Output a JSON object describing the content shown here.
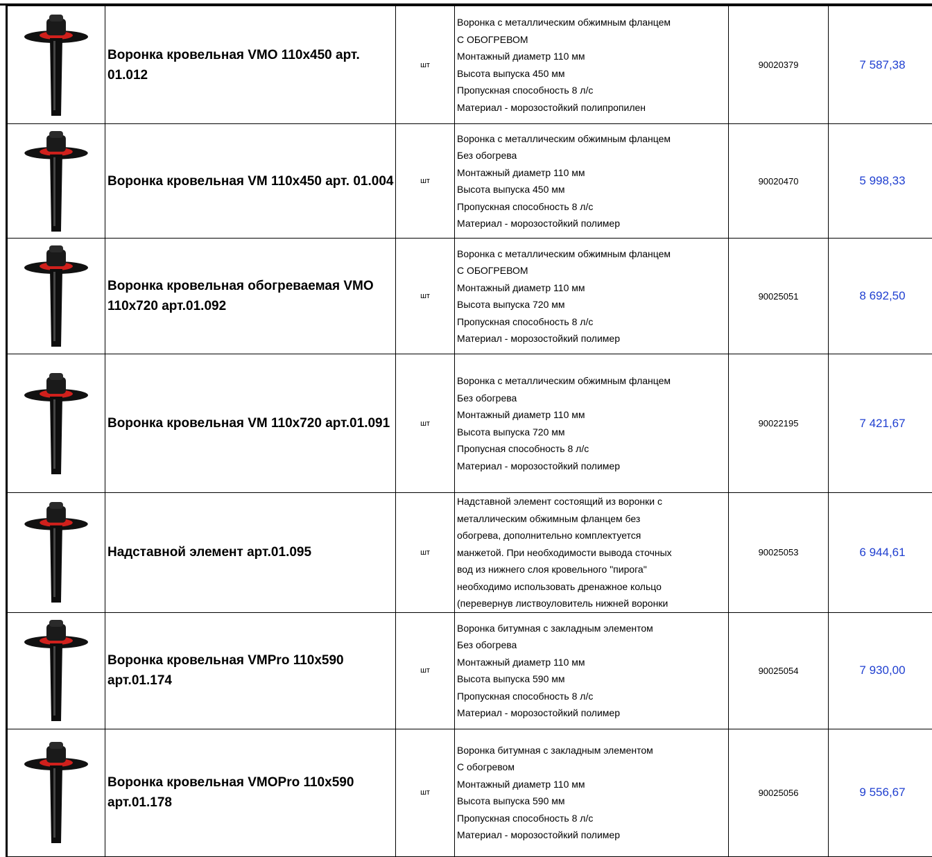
{
  "table": {
    "rows": [
      {
        "name": "Воронка кровельная VMO 110x450 арт. 01.012",
        "unit": "шт",
        "description": [
          "Воронка с металлическим обжимным фланцем",
          "С ОБОГРЕВОМ",
          "Монтажный диаметр 110 мм",
          "Высота выпуска 450 мм",
          "Пропускная способность 8 л/с",
          "Материал - морозостойкий полипропилен"
        ],
        "code": "90020379",
        "price": "7 587,38"
      },
      {
        "name": "Воронка кровельная VM 110x450 арт. 01.004",
        "unit": "шт",
        "description": [
          "Воронка с металлическим обжимным фланцем",
          "Без обогрева",
          "Монтажный диаметр 110 мм",
          "Высота выпуска 450 мм",
          "Пропускная способность 8 л/с",
          "Материал - морозостойкий полимер"
        ],
        "code": "90020470",
        "price": "5 998,33"
      },
      {
        "name": "Воронка кровельная обогреваемая VMO 110x720 арт.01.092",
        "unit": "шт",
        "description": [
          "Воронка с металлическим обжимным фланцем",
          "С ОБОГРЕВОМ",
          "Монтажный диаметр 110 мм",
          "Высота выпуска 720 мм",
          "Пропускная способность 8 л/с",
          "Материал - морозостойкий полимер"
        ],
        "code": "90025051",
        "price": "8 692,50"
      },
      {
        "name": "Воронка кровельная VM 110x720 арт.01.091",
        "unit": "шт",
        "description": [
          "Воронка с металлическим обжимным фланцем",
          "Без обогрева",
          "Монтажный диаметр 110 мм",
          "Высота выпуска 720 мм",
          "Пропусная способность 8 л/с",
          "Материал - морозостойкий полимер"
        ],
        "code": "90022195",
        "price": "7 421,67"
      },
      {
        "name": "Надставной элемент арт.01.095",
        "unit": "шт",
        "description": [
          "Надставной элемент состоящий из воронки с",
          "металлическим обжимным фланцем без",
          "обогрева, дополнительно комплектуется",
          "манжетой. При необходимости вывода сточных",
          "вод из нижнего слоя кровельного \"пирога\"",
          "необходимо использовать дренажное кольцо",
          "(перевернув листвоуловитель нижней воронки"
        ],
        "code": "90025053",
        "price": "6 944,61"
      },
      {
        "name": "Воронка кровельная VMPro 110x590 арт.01.174",
        "unit": "шт",
        "description": [
          "Воронка битумная с закладным элементом",
          "Без обогрева",
          "Монтажный диаметр 110 мм",
          "Высота выпуска 590 мм",
          "Пропускная способность 8 л/с",
          "Материал - морозостойкий полимер"
        ],
        "code": "90025054",
        "price": "7 930,00"
      },
      {
        "name": "Воронка кровельная VMOPro 110x590 арт.01.178",
        "unit": "шт",
        "description": [
          "Воронка битумная с закладным элементом",
          "С обогревом",
          "Монтажный диаметр 110 мм",
          "Высота выпуска 590 мм",
          "Пропускная способность 8 л/с",
          "Материал - морозостойкий полимер"
        ],
        "code": "90025056",
        "price": "9 556,67"
      }
    ]
  }
}
